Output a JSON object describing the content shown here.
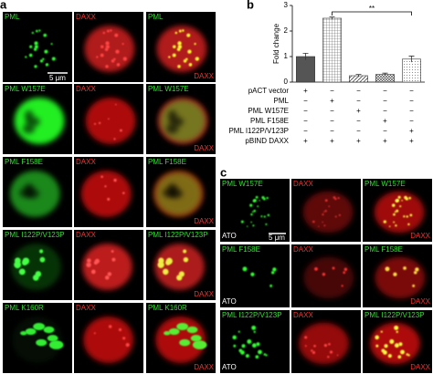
{
  "panel_a": {
    "label": "a",
    "scale_bar": "5 μm",
    "rows": [
      {
        "green": "PML",
        "red": "DAXX",
        "merge_green": "PML",
        "merge_red": "DAXX"
      },
      {
        "green": "PML W157E",
        "red": "DAXX",
        "merge_green": "PML W157E",
        "merge_red": "DAXX"
      },
      {
        "green": "PML F158E",
        "red": "DAXX",
        "merge_green": "PML F158E",
        "merge_red": "DAXX"
      },
      {
        "green": "PML I122P/V123P",
        "red": "DAXX",
        "merge_green": "PML I122P/V123P",
        "merge_red": "DAXX"
      },
      {
        "green": "PML K160R",
        "red": "DAXX",
        "merge_green": "PML K160R",
        "merge_red": "DAXX"
      }
    ]
  },
  "chart_data": {
    "type": "bar",
    "panel_label": "b",
    "ylabel": "Fold change",
    "categories": [
      null,
      null,
      null,
      null,
      null
    ],
    "values": [
      1.0,
      2.5,
      0.25,
      0.3,
      0.9
    ],
    "errors": [
      0.13,
      0.05,
      0.05,
      0.05,
      0.12
    ],
    "ylim": [
      0,
      3
    ],
    "yticks": [
      0,
      1,
      2,
      3
    ],
    "significance": "**",
    "conditions": [
      {
        "name": "pACT vector",
        "signs": [
          "+",
          "−",
          "−",
          "−",
          "−"
        ]
      },
      {
        "name": "PML",
        "signs": [
          "−",
          "+",
          "−",
          "−",
          "−"
        ]
      },
      {
        "name": "PML W157E",
        "signs": [
          "−",
          "−",
          "+",
          "−",
          "−"
        ]
      },
      {
        "name": "PML F158E",
        "signs": [
          "−",
          "−",
          "−",
          "+",
          "−"
        ]
      },
      {
        "name": "PML I122P/V123P",
        "signs": [
          "−",
          "−",
          "−",
          "−",
          "+"
        ]
      },
      {
        "name": "pBIND DAXX",
        "signs": [
          "+",
          "+",
          "+",
          "+",
          "+"
        ]
      }
    ]
  },
  "panel_c": {
    "label": "c",
    "scale_bar": "5 μm",
    "rows": [
      {
        "green": "PML W157E",
        "red": "DAXX",
        "merge_green": "PML W157E",
        "merge_red": "DAXX",
        "treatment": "ATO"
      },
      {
        "green": "PML F158E",
        "red": "DAXX",
        "merge_green": "PML F158E",
        "merge_red": "DAXX",
        "treatment": "ATO"
      },
      {
        "green": "PML I122P/V123P",
        "red": "DAXX",
        "merge_green": "PML I122P/V123P",
        "merge_red": "DAXX",
        "treatment": "ATO"
      }
    ]
  }
}
